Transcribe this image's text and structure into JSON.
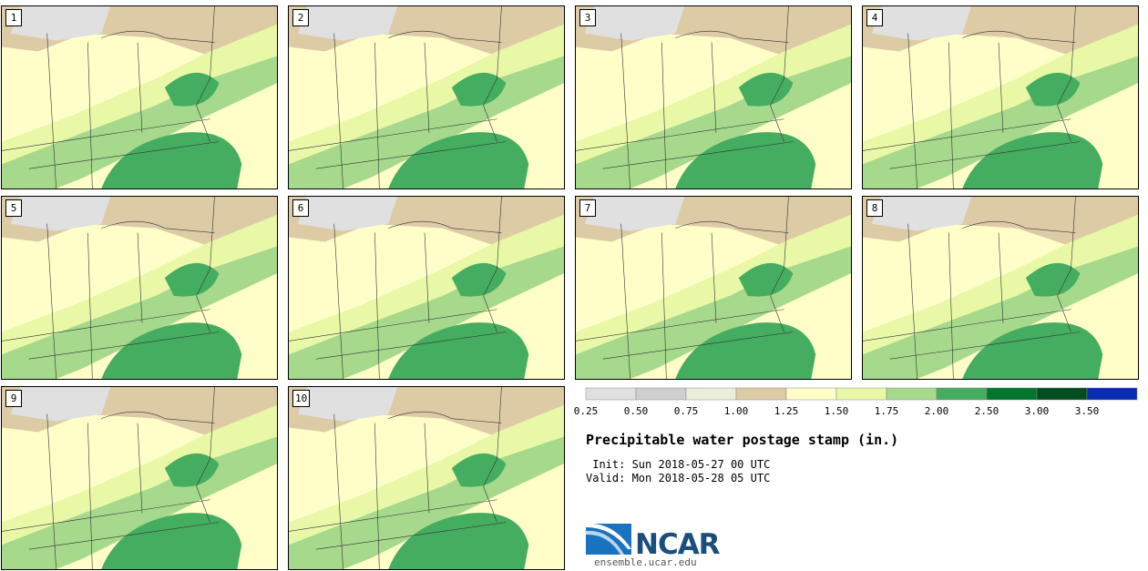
{
  "stamps": [
    {
      "label": "1"
    },
    {
      "label": "2"
    },
    {
      "label": "3"
    },
    {
      "label": "4"
    },
    {
      "label": "5"
    },
    {
      "label": "6"
    },
    {
      "label": "7"
    },
    {
      "label": "8"
    },
    {
      "label": "9"
    },
    {
      "label": "10"
    }
  ],
  "colorbar": {
    "ticks": [
      "0.25",
      "0.50",
      "0.75",
      "1.00",
      "1.25",
      "1.50",
      "1.75",
      "2.00",
      "2.50",
      "3.00",
      "3.50"
    ],
    "colors": [
      "#e0e0e0",
      "#cfcfcf",
      "#ededde",
      "#ddcba6",
      "#fffec9",
      "#e8f8a6",
      "#a6d98b",
      "#45ad5f",
      "#02752f",
      "#024d20",
      "#0a2bb2"
    ]
  },
  "title": "Precipitable water postage stamp (in.)",
  "init_line": " Init: Sun 2018-05-27 00 UTC",
  "valid_line": "Valid: Mon 2018-05-28 05 UTC",
  "logo": {
    "name": "NCAR",
    "url": "ensemble.ucar.edu"
  }
}
